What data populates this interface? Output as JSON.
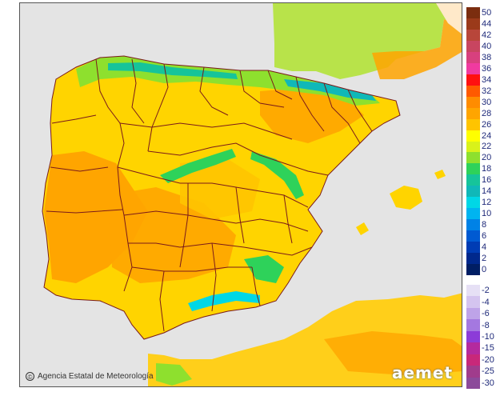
{
  "colors": {
    "sea": "#e4e4e4",
    "border": "#7a1a1a",
    "france_base": "#b8e34a",
    "africa_base": "#ffcf1a"
  },
  "credit": {
    "icon": "copyright-icon",
    "text": "Agencia Estatal de Meteorología"
  },
  "logo": {
    "text": "aemet"
  },
  "legend": [
    {
      "label": "50",
      "color": "#7b2d0f"
    },
    {
      "label": "44",
      "color": "#9b3a1a"
    },
    {
      "label": "42",
      "color": "#b8463a"
    },
    {
      "label": "40",
      "color": "#c84560"
    },
    {
      "label": "38",
      "color": "#d8407e"
    },
    {
      "label": "36",
      "color": "#f03aa0"
    },
    {
      "label": "34",
      "color": "#ff1010"
    },
    {
      "label": "32",
      "color": "#ff5a00"
    },
    {
      "label": "30",
      "color": "#ff8c00"
    },
    {
      "label": "28",
      "color": "#ffa500"
    },
    {
      "label": "26",
      "color": "#ffc400"
    },
    {
      "label": "24",
      "color": "#ffff00"
    },
    {
      "label": "22",
      "color": "#d9f21a"
    },
    {
      "label": "20",
      "color": "#8ee02e"
    },
    {
      "label": "18",
      "color": "#2ed25a"
    },
    {
      "label": "16",
      "color": "#16c49a"
    },
    {
      "label": "14",
      "color": "#10b8b8"
    },
    {
      "label": "12",
      "color": "#00d7e6"
    },
    {
      "label": "10",
      "color": "#00b4f0"
    },
    {
      "label": "8",
      "color": "#0082e6"
    },
    {
      "label": "6",
      "color": "#005ad2"
    },
    {
      "label": "4",
      "color": "#003cb4"
    },
    {
      "label": "2",
      "color": "#00288c"
    },
    {
      "label": "0",
      "color": "#001e64"
    },
    {
      "label": "-2",
      "color": "#e6e0f5"
    },
    {
      "label": "-4",
      "color": "#d4c4ef"
    },
    {
      "label": "-6",
      "color": "#bea3e8"
    },
    {
      "label": "-8",
      "color": "#a478e0"
    },
    {
      "label": "-10",
      "color": "#8c3cd8"
    },
    {
      "label": "-15",
      "color": "#b42a9e"
    },
    {
      "label": "-20",
      "color": "#c8287a"
    },
    {
      "label": "-25",
      "color": "#a03c8c"
    },
    {
      "label": "-30",
      "color": "#8c4a9a"
    }
  ]
}
